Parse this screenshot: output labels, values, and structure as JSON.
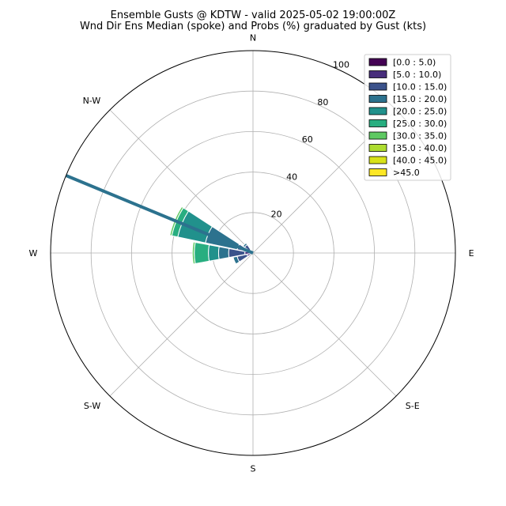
{
  "chart_data": {
    "type": "windrose",
    "title": "Ensemble Gusts @ KDTW - valid 2025-05-02 19:00:00Z",
    "subtitle": "Wnd Dir Ens Median (spoke) and Probs (%) graduated by Gust (kts)",
    "directions": [
      "N",
      "N-W",
      "W",
      "S-W",
      "S",
      "S-E",
      "E"
    ],
    "r_ticks": [
      "20",
      "40",
      "60",
      "80",
      "100"
    ],
    "r_max": 100,
    "grid": true,
    "legend_position": "top-right",
    "bins": [
      {
        "label": "[0.0 : 5.0)",
        "color": "#440154"
      },
      {
        "label": "[5.0 : 10.0)",
        "color": "#472d7b"
      },
      {
        "label": "[10.0 : 15.0)",
        "color": "#3b528b"
      },
      {
        "label": "[15.0 : 20.0)",
        "color": "#2c728e"
      },
      {
        "label": "[20.0 : 25.0)",
        "color": "#21918c"
      },
      {
        "label": "[25.0 : 30.0)",
        "color": "#28ae80"
      },
      {
        "label": "[30.0 : 35.0)",
        "color": "#5ec962"
      },
      {
        "label": "[35.0 : 40.0)",
        "color": "#addc30"
      },
      {
        "label": "[40.0 : 45.0)",
        "color": "#d8e219"
      },
      {
        "label": ">45.0",
        "color": "#fde725"
      }
    ],
    "sectors": [
      {
        "direction_deg": 270,
        "cumulative": [
          0,
          4,
          12,
          17,
          22,
          29,
          30,
          30,
          30,
          30
        ]
      },
      {
        "direction_deg": 292.5,
        "cumulative": [
          0,
          0.5,
          8,
          24,
          38,
          41,
          42,
          42,
          42,
          42
        ]
      },
      {
        "direction_deg": 315,
        "cumulative": [
          0,
          2,
          5,
          6,
          6,
          6,
          6,
          6,
          6,
          6
        ]
      },
      {
        "direction_deg": 247.5,
        "cumulative": [
          0,
          3,
          8,
          10,
          10,
          10,
          10,
          10,
          10,
          10
        ]
      }
    ],
    "spoke": {
      "direction_deg": 292.5,
      "value": 100,
      "color": "#2c728e"
    }
  }
}
